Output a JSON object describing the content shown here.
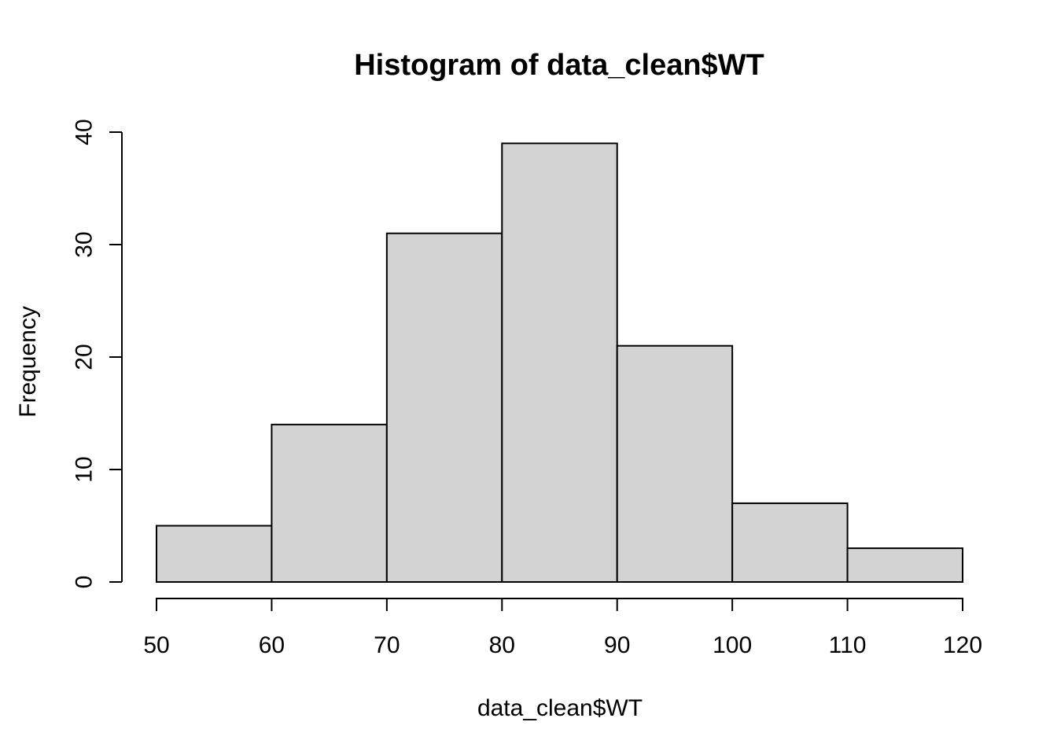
{
  "figure": {
    "background": "#ffffff"
  },
  "chart_data": {
    "type": "bar",
    "subtype": "histogram",
    "title": "Histogram of data_clean$WT",
    "xlabel": "data_clean$WT",
    "ylabel": "Frequency",
    "bin_edges": [
      50,
      60,
      70,
      80,
      90,
      100,
      110,
      120
    ],
    "counts": [
      5,
      14,
      31,
      39,
      21,
      7,
      3
    ],
    "x_ticks": [
      50,
      60,
      70,
      80,
      90,
      100,
      110,
      120
    ],
    "x_tick_labels": [
      "50",
      "60",
      "70",
      "80",
      "90",
      "100",
      "110",
      "120"
    ],
    "y_ticks": [
      0,
      10,
      20,
      30,
      40
    ],
    "y_tick_labels": [
      "0",
      "10",
      "20",
      "30",
      "40"
    ],
    "xlim": [
      50,
      120
    ],
    "ylim": [
      0,
      40
    ],
    "grid": false,
    "legend": null,
    "colors": {
      "bar_fill": "#d3d3d3",
      "bar_stroke": "#000000",
      "axis": "#000000",
      "text": "#000000",
      "background": "#ffffff"
    }
  }
}
